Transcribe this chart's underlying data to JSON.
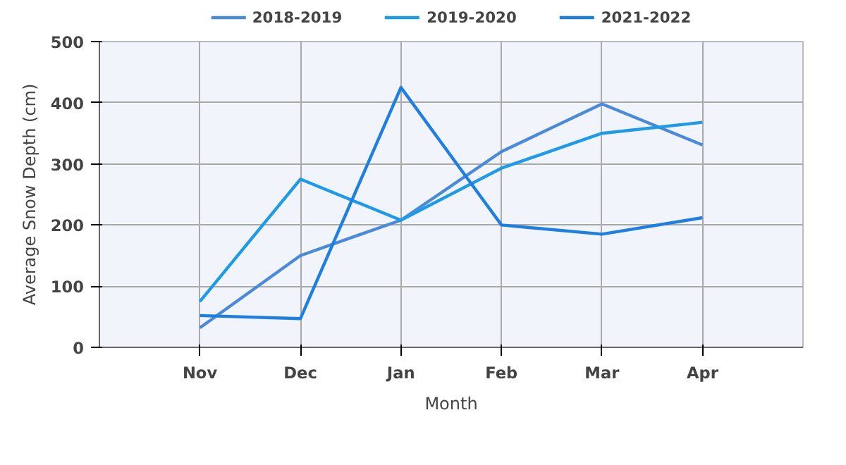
{
  "chart_data": {
    "type": "line",
    "xlabel": "Month",
    "ylabel": "Average Snow Depth (cm)",
    "categories": [
      "Nov",
      "Dec",
      "Jan",
      "Feb",
      "Mar",
      "Apr"
    ],
    "series": [
      {
        "name": "2018-2019",
        "color": "#4a8ad8",
        "values": [
          32,
          150,
          208,
          320,
          398,
          331
        ]
      },
      {
        "name": "2019-2020",
        "color": "#1e9ae6",
        "values": [
          75,
          275,
          208,
          293,
          350,
          368
        ]
      },
      {
        "name": "2021-2022",
        "color": "#1e7fe0",
        "values": [
          52,
          47,
          425,
          200,
          185,
          212
        ]
      }
    ],
    "ylim": [
      0,
      500
    ],
    "yticks": [
      0,
      100,
      200,
      300,
      400,
      500
    ],
    "grid": true,
    "legend": "top",
    "marker": "none",
    "line_style": "solid"
  }
}
